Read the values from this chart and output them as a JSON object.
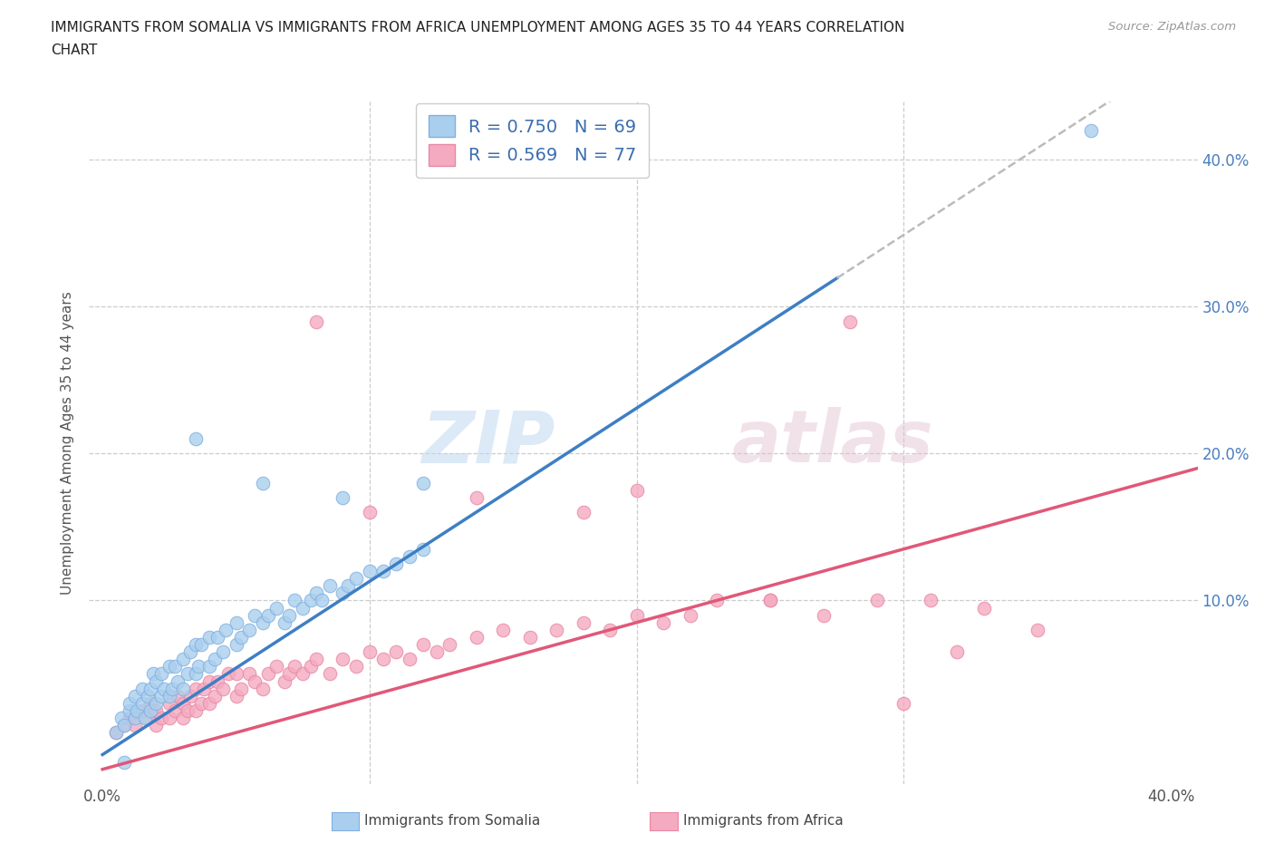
{
  "title": "IMMIGRANTS FROM SOMALIA VS IMMIGRANTS FROM AFRICA UNEMPLOYMENT AMONG AGES 35 TO 44 YEARS CORRELATION\nCHART",
  "source": "Source: ZipAtlas.com",
  "ylabel": "Unemployment Among Ages 35 to 44 years",
  "xlabel_somalia": "Immigrants from Somalia",
  "xlabel_africa": "Immigrants from Africa",
  "xlim": [
    -0.005,
    0.41
  ],
  "ylim": [
    -0.025,
    0.44
  ],
  "R_somalia": 0.75,
  "N_somalia": 69,
  "R_africa": 0.569,
  "N_africa": 77,
  "somalia_color": "#aacfee",
  "africa_color": "#f4aac0",
  "somalia_line_color": "#3d7fc4",
  "africa_line_color": "#e05878",
  "dashed_line_color": "#bbbbbb",
  "watermark_zip": "ZIP",
  "watermark_atlas": "atlas",
  "somalia_slope": 1.18,
  "somalia_intercept": -0.005,
  "somalia_line_x_start": 0.0,
  "somalia_line_x_solid_end": 0.275,
  "somalia_line_x_dash_end": 0.41,
  "africa_slope": 0.5,
  "africa_intercept": -0.015,
  "africa_line_x_start": 0.0,
  "africa_line_x_end": 0.41,
  "somalia_scatter_x": [
    0.005,
    0.007,
    0.008,
    0.01,
    0.01,
    0.012,
    0.012,
    0.013,
    0.015,
    0.015,
    0.016,
    0.017,
    0.018,
    0.018,
    0.019,
    0.02,
    0.02,
    0.022,
    0.022,
    0.023,
    0.025,
    0.025,
    0.026,
    0.027,
    0.028,
    0.03,
    0.03,
    0.032,
    0.033,
    0.035,
    0.035,
    0.036,
    0.037,
    0.04,
    0.04,
    0.042,
    0.043,
    0.045,
    0.046,
    0.05,
    0.05,
    0.052,
    0.055,
    0.057,
    0.06,
    0.062,
    0.065,
    0.068,
    0.07,
    0.072,
    0.075,
    0.078,
    0.08,
    0.082,
    0.085,
    0.09,
    0.092,
    0.095,
    0.1,
    0.105,
    0.11,
    0.115,
    0.12,
    0.035,
    0.06,
    0.09,
    0.12,
    0.37,
    0.008
  ],
  "somalia_scatter_y": [
    0.01,
    0.02,
    0.015,
    0.025,
    0.03,
    0.02,
    0.035,
    0.025,
    0.03,
    0.04,
    0.02,
    0.035,
    0.04,
    0.025,
    0.05,
    0.03,
    0.045,
    0.035,
    0.05,
    0.04,
    0.035,
    0.055,
    0.04,
    0.055,
    0.045,
    0.04,
    0.06,
    0.05,
    0.065,
    0.05,
    0.07,
    0.055,
    0.07,
    0.055,
    0.075,
    0.06,
    0.075,
    0.065,
    0.08,
    0.07,
    0.085,
    0.075,
    0.08,
    0.09,
    0.085,
    0.09,
    0.095,
    0.085,
    0.09,
    0.1,
    0.095,
    0.1,
    0.105,
    0.1,
    0.11,
    0.105,
    0.11,
    0.115,
    0.12,
    0.12,
    0.125,
    0.13,
    0.135,
    0.21,
    0.18,
    0.17,
    0.18,
    0.42,
    -0.01
  ],
  "africa_scatter_x": [
    0.005,
    0.008,
    0.01,
    0.012,
    0.015,
    0.017,
    0.018,
    0.02,
    0.02,
    0.022,
    0.025,
    0.025,
    0.027,
    0.028,
    0.03,
    0.03,
    0.032,
    0.033,
    0.035,
    0.035,
    0.037,
    0.038,
    0.04,
    0.04,
    0.042,
    0.043,
    0.045,
    0.047,
    0.05,
    0.05,
    0.052,
    0.055,
    0.057,
    0.06,
    0.062,
    0.065,
    0.068,
    0.07,
    0.072,
    0.075,
    0.078,
    0.08,
    0.085,
    0.09,
    0.095,
    0.1,
    0.105,
    0.11,
    0.115,
    0.12,
    0.125,
    0.13,
    0.14,
    0.15,
    0.16,
    0.17,
    0.18,
    0.19,
    0.2,
    0.21,
    0.22,
    0.23,
    0.25,
    0.27,
    0.29,
    0.31,
    0.33,
    0.35,
    0.18,
    0.2,
    0.08,
    0.1,
    0.14,
    0.25,
    0.32,
    0.28,
    0.3
  ],
  "africa_scatter_y": [
    0.01,
    0.015,
    0.02,
    0.015,
    0.025,
    0.02,
    0.03,
    0.015,
    0.025,
    0.02,
    0.03,
    0.02,
    0.025,
    0.035,
    0.02,
    0.03,
    0.025,
    0.035,
    0.025,
    0.04,
    0.03,
    0.04,
    0.03,
    0.045,
    0.035,
    0.045,
    0.04,
    0.05,
    0.035,
    0.05,
    0.04,
    0.05,
    0.045,
    0.04,
    0.05,
    0.055,
    0.045,
    0.05,
    0.055,
    0.05,
    0.055,
    0.06,
    0.05,
    0.06,
    0.055,
    0.065,
    0.06,
    0.065,
    0.06,
    0.07,
    0.065,
    0.07,
    0.075,
    0.08,
    0.075,
    0.08,
    0.085,
    0.08,
    0.09,
    0.085,
    0.09,
    0.1,
    0.1,
    0.09,
    0.1,
    0.1,
    0.095,
    0.08,
    0.16,
    0.175,
    0.29,
    0.16,
    0.17,
    0.1,
    0.065,
    0.29,
    0.03
  ]
}
